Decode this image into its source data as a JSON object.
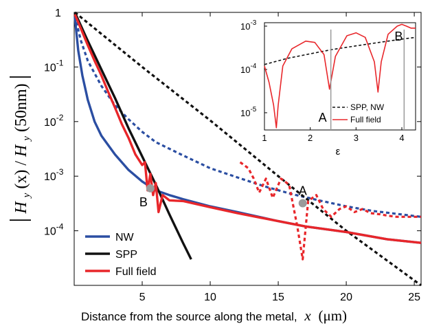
{
  "chart_data": [
    {
      "type": "line",
      "title": "",
      "xlabel": "Distance from the source along the metal,",
      "xlabel_symbol": "x",
      "xlabel_unit": "(μm)",
      "ylabel": "|H_y(x)/H_y(50nm)|",
      "ylabel_parts": {
        "left_bar": "|",
        "H1": "H",
        "sub1": "y",
        "arg1": "(x)",
        "slash": "/",
        "H2": "H",
        "sub2": "y",
        "arg2": "(50nm)",
        "right_bar": "|"
      },
      "yscale": "log",
      "xlim": [
        0,
        25.5
      ],
      "ylim": [
        1e-05,
        1
      ],
      "xticks": [
        5,
        10,
        15,
        20,
        25
      ],
      "xtick_labels": [
        "5",
        "10",
        "15",
        "20",
        "25"
      ],
      "ytick_labels": [
        {
          "base": "1",
          "exp": ""
        },
        {
          "base": "10",
          "exp": "-1"
        },
        {
          "base": "10",
          "exp": "-2"
        },
        {
          "base": "10",
          "exp": "-3"
        },
        {
          "base": "10",
          "exp": "-4"
        }
      ],
      "legend": {
        "placement": "bottom-left"
      },
      "series": [
        {
          "name": "NW",
          "color": "#2b4ea2",
          "style": "solid",
          "x": [
            0.05,
            0.3,
            0.6,
            1,
            1.5,
            2,
            3,
            4,
            5,
            6,
            7,
            8,
            10,
            12,
            15,
            17,
            20,
            23,
            25.5
          ],
          "y": [
            0.8,
            0.2,
            0.07,
            0.025,
            0.01,
            0.0055,
            0.0025,
            0.0013,
            0.0008,
            0.00055,
            0.00045,
            0.00038,
            0.00028,
            0.00022,
            0.00015,
            0.00012,
            9.5e-05,
            7e-05,
            6e-05
          ]
        },
        {
          "name": "NW (dashed)",
          "color": "#2b4ea2",
          "style": "dashed",
          "x": [
            0.05,
            0.5,
            1,
            2,
            3,
            4,
            5,
            6,
            8,
            10,
            12,
            14,
            16,
            18,
            20,
            22,
            25.5
          ],
          "y": [
            0.85,
            0.3,
            0.13,
            0.045,
            0.02,
            0.011,
            0.0065,
            0.0042,
            0.0024,
            0.0014,
            0.00095,
            0.00065,
            0.00047,
            0.00036,
            0.00028,
            0.00023,
            0.00018
          ]
        },
        {
          "name": "SPP",
          "color": "#111111",
          "style": "solid",
          "x": [
            0.05,
            1,
            2,
            3,
            4,
            5,
            6,
            7,
            8,
            8.6
          ],
          "y": [
            1,
            0.3,
            0.09,
            0.027,
            0.0075,
            0.0023,
            0.0007,
            0.0002,
            6e-05,
            3e-05
          ]
        },
        {
          "name": "SPP (dashed)",
          "color": "#111111",
          "style": "dashed",
          "x": [
            0.05,
            5,
            10,
            15,
            20,
            25.5
          ],
          "y": [
            1,
            0.1,
            0.0105,
            0.001,
            0.0001,
            9e-06
          ]
        },
        {
          "name": "Full field",
          "color": "#e8262a",
          "style": "solid",
          "x": [
            0.05,
            0.5,
            1,
            1.5,
            2,
            2.5,
            3,
            3.5,
            4,
            4.5,
            5,
            5.2,
            5.4,
            5.6,
            5.8,
            6,
            6.2,
            6.5,
            7,
            8,
            10,
            12,
            15,
            17,
            20,
            23,
            25.5
          ],
          "y": [
            0.92,
            0.5,
            0.25,
            0.13,
            0.07,
            0.035,
            0.018,
            0.009,
            0.005,
            0.0025,
            0.0016,
            0.0018,
            0.00055,
            0.0011,
            0.00045,
            0.00075,
            0.00022,
            0.00045,
            0.00036,
            0.00035,
            0.00027,
            0.00021,
            0.00015,
            0.00012,
            9.5e-05,
            7e-05,
            6e-05
          ]
        },
        {
          "name": "Full field (dashed)",
          "color": "#e8262a",
          "style": "dashed",
          "x": [
            12.2,
            12.8,
            13.2,
            13.6,
            14.1,
            14.6,
            15.2,
            15.8,
            16.4,
            16.8,
            17.2,
            17.8,
            18.3,
            18.9,
            19.5,
            20,
            20.6,
            21.2,
            21.8,
            22.5,
            23,
            23.7,
            24.4,
            25,
            25.5
          ],
          "y": [
            0.0018,
            0.0014,
            0.0009,
            0.0005,
            0.0009,
            0.0004,
            0.0009,
            0.0007,
            0.00012,
            3e-05,
            0.00035,
            0.00045,
            0.00025,
            0.00018,
            0.00025,
            0.00028,
            0.00022,
            0.00025,
            0.00021,
            0.0002,
            0.00019,
            0.00018,
            0.00018,
            0.00018,
            0.00018
          ]
        }
      ],
      "markers": [
        {
          "label": "B",
          "x": 5.6,
          "y": 0.0006
        },
        {
          "label": "A",
          "x": 16.8,
          "y": 0.00032
        }
      ]
    },
    {
      "type": "line",
      "title": "",
      "xlabel": "ε",
      "ylabel": "",
      "yscale": "log",
      "xlim": [
        1,
        4.3
      ],
      "ylim": [
        4e-06,
        0.0012
      ],
      "xticks": [
        1,
        2,
        3,
        4
      ],
      "xtick_labels": [
        "1",
        "2",
        "3",
        "4"
      ],
      "ytick_labels": [
        {
          "base": "10",
          "exp": "-3"
        },
        {
          "base": "10",
          "exp": "-4"
        },
        {
          "base": "10",
          "exp": "-5"
        }
      ],
      "legend": {
        "placement": "bottom-right"
      },
      "series": [
        {
          "name": "SPP, NW",
          "color": "#111111",
          "style": "dashed",
          "x": [
            1,
            1.5,
            2,
            2.5,
            3,
            3.5,
            4,
            4.3
          ],
          "y": [
            0.00013,
            0.00018,
            0.00023,
            0.00029,
            0.00035,
            0.00042,
            0.0005,
            0.00055
          ]
        },
        {
          "name": "Full field",
          "color": "#e8262a",
          "style": "solid",
          "x": [
            1,
            1.1,
            1.2,
            1.26,
            1.3,
            1.4,
            1.6,
            1.9,
            2.1,
            2.3,
            2.42,
            2.55,
            2.8,
            3.0,
            3.2,
            3.4,
            3.48,
            3.55,
            3.7,
            3.9,
            4.0,
            4.1,
            4.2,
            4.3
          ],
          "y": [
            0.00012,
            5e-05,
            1.5e-05,
            4.5e-06,
            1.5e-05,
            0.00012,
            0.0003,
            0.00045,
            0.00042,
            0.00022,
            3.5e-05,
            0.0002,
            0.0006,
            0.0007,
            0.00055,
            0.00015,
            3e-05,
            0.00015,
            0.00065,
            0.001,
            0.0011,
            0.001,
            0.0009,
            0.0009
          ]
        }
      ],
      "markers": [
        {
          "label": "A",
          "x": 2.45
        },
        {
          "label": "B",
          "x": 4.05
        }
      ]
    }
  ]
}
